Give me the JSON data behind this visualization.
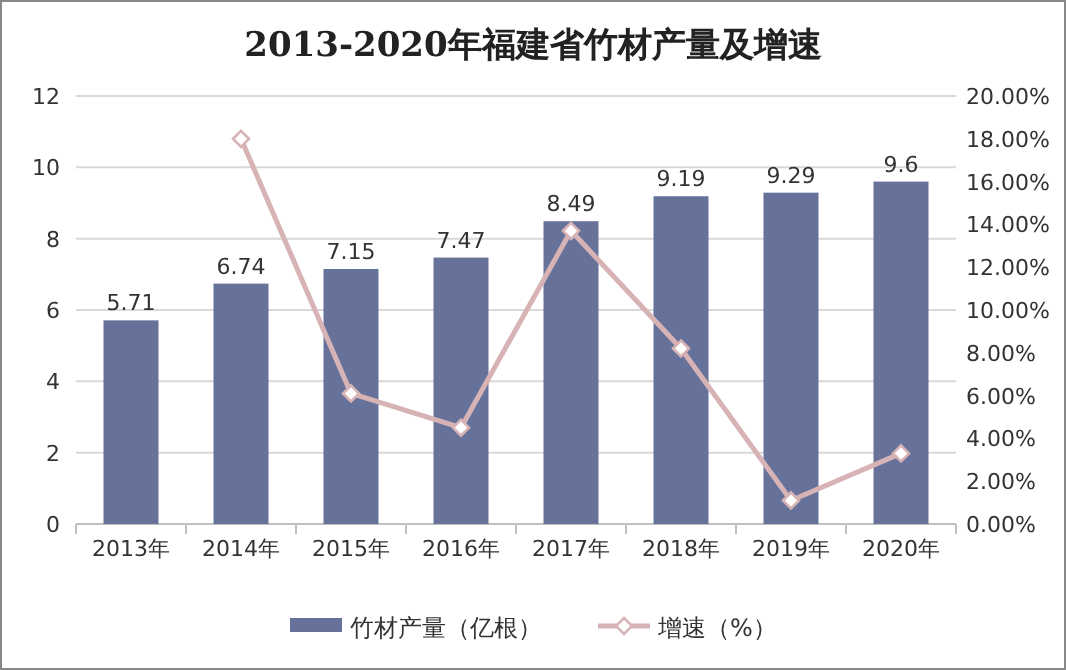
{
  "chart_data": {
    "type": "bar",
    "title": "2013-2020年福建省竹材产量及增速",
    "categories": [
      "2013年",
      "2014年",
      "2015年",
      "2016年",
      "2017年",
      "2018年",
      "2019年",
      "2020年"
    ],
    "series": [
      {
        "name": "竹材产量（亿根）",
        "color": "#67729a",
        "data_labels": true,
        "values": [
          5.71,
          6.74,
          7.15,
          7.47,
          8.49,
          9.19,
          9.29,
          9.6
        ]
      },
      {
        "name": "增速（%）",
        "type": "line",
        "axis": "y2",
        "color": "#d7b3b5",
        "marker": "diamond",
        "values": [
          null,
          18.0,
          6.1,
          4.5,
          13.7,
          8.2,
          1.1,
          3.3
        ]
      }
    ],
    "ylim": [
      0,
      12
    ],
    "yticks": [
      0,
      2,
      4,
      6,
      8,
      10,
      12
    ],
    "y2lim": [
      0,
      20
    ],
    "y2ticks": [
      {
        "value": 0,
        "label": "0.00%"
      },
      {
        "value": 2,
        "label": "2.00%"
      },
      {
        "value": 4,
        "label": "4.00%"
      },
      {
        "value": 6,
        "label": "6.00%"
      },
      {
        "value": 8,
        "label": "8.00%"
      },
      {
        "value": 10,
        "label": "10.00%"
      },
      {
        "value": 12,
        "label": "12.00%"
      },
      {
        "value": 14,
        "label": "14.00%"
      },
      {
        "value": 16,
        "label": "16.00%"
      },
      {
        "value": 18,
        "label": "18.00%"
      },
      {
        "value": 20,
        "label": "20.00%"
      }
    ],
    "grid": "y",
    "legend": "bottom"
  }
}
